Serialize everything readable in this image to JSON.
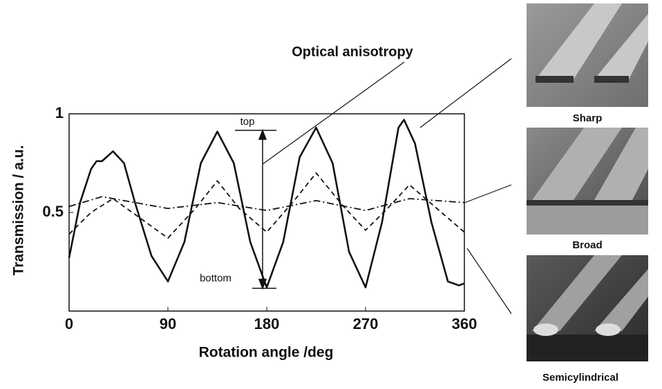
{
  "chart_data": {
    "type": "line",
    "x_label": "Rotation angle /deg",
    "y_label": "Transmission / a.u.",
    "xlim": [
      0,
      360
    ],
    "xticks": [
      0,
      90,
      180,
      270,
      360
    ],
    "ylim": [
      0,
      1
    ],
    "yticks": [
      0.5,
      1
    ],
    "series": [
      {
        "color": "#111111",
        "dash": "solid",
        "x": [
          0,
          10,
          20,
          25,
          30,
          40,
          50,
          60,
          75,
          90,
          105,
          120,
          135,
          150,
          165,
          180,
          195,
          210,
          225,
          240,
          255,
          270,
          285,
          300,
          305,
          315,
          330,
          345,
          355,
          360
        ],
        "values": [
          0.27,
          0.55,
          0.72,
          0.76,
          0.76,
          0.81,
          0.75,
          0.55,
          0.28,
          0.15,
          0.35,
          0.75,
          0.91,
          0.75,
          0.35,
          0.12,
          0.35,
          0.78,
          0.93,
          0.75,
          0.3,
          0.12,
          0.45,
          0.93,
          0.97,
          0.85,
          0.45,
          0.15,
          0.13,
          0.14
        ]
      },
      {
        "color": "#111111",
        "dash": "dashed",
        "x": [
          0,
          20,
          40,
          65,
          90,
          115,
          135,
          155,
          180,
          205,
          225,
          250,
          270,
          290,
          310,
          335,
          360
        ],
        "values": [
          0.39,
          0.5,
          0.57,
          0.47,
          0.37,
          0.52,
          0.66,
          0.52,
          0.4,
          0.56,
          0.7,
          0.53,
          0.41,
          0.52,
          0.64,
          0.52,
          0.4
        ]
      },
      {
        "color": "#111111",
        "dash": "dashdot",
        "x": [
          0,
          30,
          60,
          90,
          135,
          180,
          225,
          270,
          310,
          360
        ],
        "values": [
          0.53,
          0.58,
          0.55,
          0.52,
          0.55,
          0.51,
          0.56,
          0.51,
          0.57,
          0.55
        ]
      }
    ],
    "annotations": {
      "optical": "Optical anisotropy",
      "top": "top",
      "bottom": "bottom"
    },
    "panels": [
      "Sharp",
      "Broad",
      "Semicylindrical"
    ]
  }
}
